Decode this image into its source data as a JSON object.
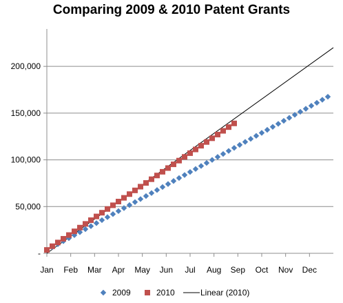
{
  "chart_data": {
    "type": "scatter",
    "title": "Comparing 2009 & 2010 Patent Grants",
    "xlabel": "",
    "ylabel": "",
    "x_categories": [
      "Jan",
      "Feb",
      "Mar",
      "Apr",
      "May",
      "Jun",
      "Jul",
      "Aug",
      "Sep",
      "Oct",
      "Nov",
      "Dec"
    ],
    "y_ticks": [
      {
        "value": 0,
        "label": "-"
      },
      {
        "value": 50000,
        "label": "50,000"
      },
      {
        "value": 100000,
        "label": "100,000"
      },
      {
        "value": 150000,
        "label": "150,000"
      },
      {
        "value": 200000,
        "label": "200,000"
      }
    ],
    "ylim": [
      0,
      240000
    ],
    "xlim": [
      0,
      52
    ],
    "grid": "horizontal",
    "legend_position": "bottom",
    "series": [
      {
        "name": "2009",
        "marker": "diamond",
        "color": "#4f81bd",
        "weeks": 52,
        "start": 3300,
        "end": 167500
      },
      {
        "name": "2010",
        "marker": "square",
        "color": "#c0504d",
        "weeks": 35,
        "start": 3600,
        "end": 139000
      },
      {
        "name": "Linear (2010)",
        "marker": "line",
        "color": "#000000",
        "start": 0,
        "end": 220000
      }
    ]
  }
}
